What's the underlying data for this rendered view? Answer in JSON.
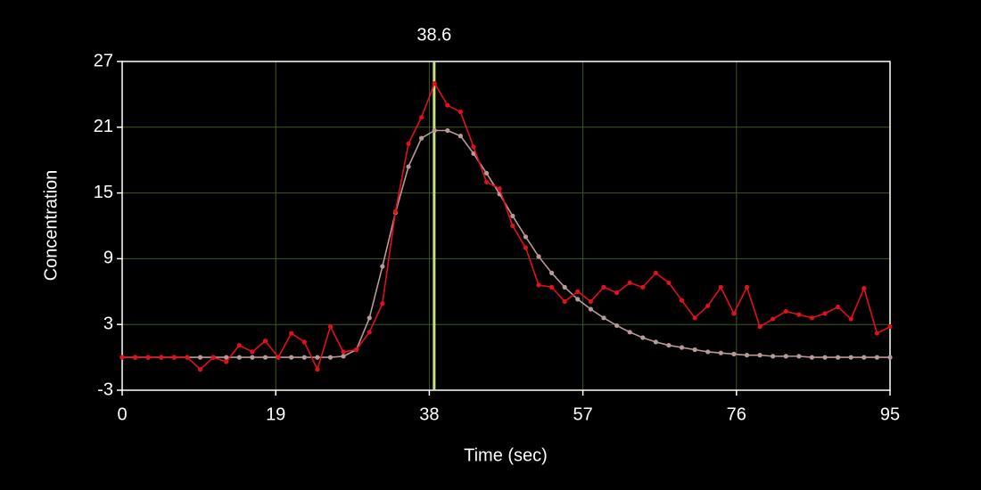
{
  "chart_data": {
    "type": "line",
    "x_label": "Time (sec)",
    "y_label": "Concentration",
    "xlim": [
      0,
      95
    ],
    "xticks": [
      0,
      19,
      38,
      57,
      76,
      95
    ],
    "ylim": [
      -3,
      27
    ],
    "yticks": [
      -3,
      3,
      9,
      15,
      21,
      27
    ],
    "grid": true,
    "grid_color": "#3d5a1e",
    "cursor": 38.6,
    "cursor_color": "#c8e07a",
    "x": [
      0,
      1.61,
      3.22,
      4.83,
      6.44,
      8.05,
      9.66,
      11.27,
      12.88,
      14.49,
      16.1,
      17.71,
      19.32,
      20.93,
      22.54,
      24.15,
      25.76,
      27.37,
      28.98,
      30.59,
      32.2,
      33.81,
      35.42,
      37.03,
      38.64,
      40.25,
      41.86,
      43.47,
      45.08,
      46.69,
      48.31,
      49.92,
      51.53,
      53.14,
      54.75,
      56.36,
      57.97,
      59.58,
      61.19,
      62.8,
      64.41,
      66.02,
      67.63,
      69.24,
      70.85,
      72.46,
      74.07,
      75.68,
      77.29,
      78.9,
      80.51,
      82.12,
      83.73,
      85.34,
      86.95,
      88.56,
      90.17,
      91.78,
      93.39,
      95
    ],
    "series": [
      {
        "color": "#e0101c",
        "values": [
          0,
          0,
          0,
          0,
          0,
          0,
          -1.1,
          0,
          -0.4,
          1.1,
          0.5,
          1.5,
          0,
          2.2,
          1.4,
          -1.1,
          2.8,
          0.5,
          0.7,
          2.3,
          4.9,
          13.3,
          19.5,
          21.9,
          25.0,
          23.0,
          22.4,
          19.2,
          16.0,
          15.4,
          12.0,
          10.0,
          6.6,
          6.4,
          5.1,
          6.0,
          5.1,
          6.4,
          5.9,
          6.8,
          6.4,
          7.7,
          6.8,
          5.2,
          3.6,
          4.7,
          6.4,
          4.0,
          6.4,
          2.8,
          3.5,
          4.2,
          3.9,
          3.6,
          4.0,
          4.6,
          3.5,
          6.3,
          2.2,
          2.8
        ]
      },
      {
        "color": "#b89a9a",
        "values": [
          0,
          0,
          0,
          0,
          0,
          0,
          0,
          0,
          0,
          0,
          0,
          0,
          0,
          0,
          0,
          0,
          0,
          0.1,
          0.7,
          3.6,
          8.3,
          13.2,
          17.4,
          20.0,
          20.7,
          20.7,
          20.2,
          18.6,
          16.8,
          14.9,
          12.9,
          11.0,
          9.2,
          7.7,
          6.4,
          5.3,
          4.4,
          3.6,
          2.9,
          2.3,
          1.8,
          1.4,
          1.1,
          0.9,
          0.7,
          0.5,
          0.4,
          0.3,
          0.2,
          0.2,
          0.1,
          0.1,
          0.1,
          0,
          0,
          0,
          0,
          0,
          0,
          0
        ]
      }
    ]
  }
}
